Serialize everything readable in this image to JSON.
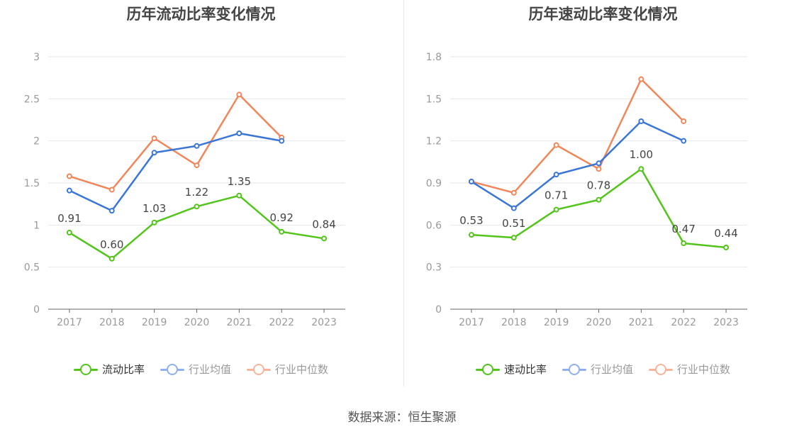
{
  "chart_data": [
    {
      "type": "line",
      "title": "历年流动比率变化情况",
      "categories": [
        "2017",
        "2018",
        "2019",
        "2020",
        "2021",
        "2022",
        "2023"
      ],
      "ylim": [
        0,
        3
      ],
      "yticks": [
        "0",
        "0.5",
        "1",
        "1.5",
        "2",
        "2.5",
        "3"
      ],
      "ytick_values": [
        0,
        0.5,
        1,
        1.5,
        2,
        2.5,
        3
      ],
      "series": [
        {
          "name": "流动比率",
          "color": "#52c41a",
          "values": [
            0.91,
            0.6,
            1.03,
            1.22,
            1.35,
            0.92,
            0.84
          ],
          "labels": [
            "0.91",
            "0.60",
            "1.03",
            "1.22",
            "1.35",
            "0.92",
            "0.84"
          ]
        },
        {
          "name": "行业均值",
          "color": "#3a76d8",
          "values": [
            1.41,
            1.17,
            1.86,
            1.94,
            2.09,
            2.0,
            null
          ]
        },
        {
          "name": "行业中位数",
          "color": "#f0875a",
          "values": [
            1.58,
            1.42,
            2.03,
            1.71,
            2.55,
            2.04,
            null
          ]
        }
      ]
    },
    {
      "type": "line",
      "title": "历年速动比率变化情况",
      "categories": [
        "2017",
        "2018",
        "2019",
        "2020",
        "2021",
        "2022",
        "2023"
      ],
      "ylim": [
        0,
        1.8
      ],
      "yticks": [
        "0",
        "0.3",
        "0.6",
        "0.9",
        "1.2",
        "1.5",
        "1.8"
      ],
      "ytick_values": [
        0,
        0.3,
        0.6,
        0.9,
        1.2,
        1.5,
        1.8
      ],
      "series": [
        {
          "name": "速动比率",
          "color": "#52c41a",
          "values": [
            0.53,
            0.51,
            0.71,
            0.78,
            1.0,
            0.47,
            0.44
          ],
          "labels": [
            "0.53",
            "0.51",
            "0.71",
            "0.78",
            "1.00",
            "0.47",
            "0.44"
          ]
        },
        {
          "name": "行业均值",
          "color": "#3a76d8",
          "values": [
            0.91,
            0.72,
            0.96,
            1.04,
            1.34,
            1.2,
            null
          ]
        },
        {
          "name": "行业中位数",
          "color": "#f0875a",
          "values": [
            0.91,
            0.83,
            1.17,
            1.0,
            1.64,
            1.34,
            null
          ]
        }
      ]
    }
  ],
  "footer": {
    "source": "数据来源：恒生聚源"
  }
}
